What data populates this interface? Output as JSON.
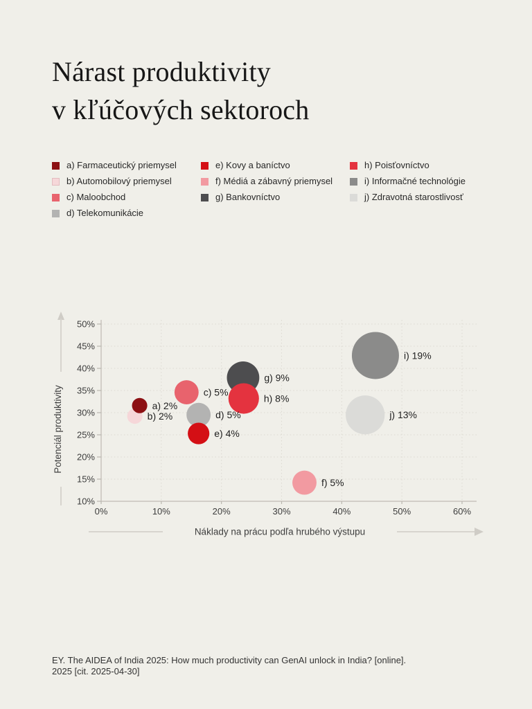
{
  "page": {
    "background": "#f0efe9"
  },
  "title": {
    "line1": "Nárast produktivity",
    "line2": "v kľúčových sektoroch"
  },
  "legend": {
    "columns": [
      [
        {
          "id": "a",
          "label": "a) Farmaceutický priemysel",
          "color": "#8c1013"
        },
        {
          "id": "b",
          "label": "b) Automobilový priemysel",
          "color": "#f6d7d9",
          "border": "#e3bcbf"
        },
        {
          "id": "c",
          "label": "c) Maloobchod",
          "color": "#e8636d"
        },
        {
          "id": "d",
          "label": "d) Telekomunikácie",
          "color": "#b3b3b2"
        }
      ],
      [
        {
          "id": "e",
          "label": "e) Kovy a baníctvo",
          "color": "#d40f15"
        },
        {
          "id": "f",
          "label": "f) Médiá a zábavný priemysel",
          "color": "#f29aa1"
        },
        {
          "id": "g",
          "label": "g) Bankovníctvo",
          "color": "#4d4d4f"
        }
      ],
      [
        {
          "id": "h",
          "label": "h) Poisťovníctvo",
          "color": "#e4333f"
        },
        {
          "id": "i",
          "label": "i) Informačné technológie",
          "color": "#8b8b8a"
        },
        {
          "id": "j",
          "label": "j) Zdravotná starostlivosť",
          "color": "#dbdbd8"
        }
      ]
    ]
  },
  "chart_data": {
    "type": "scatter",
    "subtype": "bubble",
    "title": "",
    "xlabel": "Náklady na prácu podľa hrubého výstupu",
    "ylabel": "Potenciál produktivity",
    "xlim": [
      0,
      60
    ],
    "ylim": [
      10,
      50
    ],
    "x_ticks": [
      0,
      10,
      20,
      30,
      40,
      50,
      60
    ],
    "y_ticks": [
      10,
      15,
      20,
      25,
      30,
      35,
      40,
      45,
      50
    ],
    "tick_format": "percent",
    "grid": "dotted",
    "legend_position": "top",
    "bubble_scale": 7.8,
    "bubbles": [
      {
        "id": "b",
        "sector": "Automobilový priemysel",
        "label": "b) 2%",
        "x": 5.6,
        "y": 29.2,
        "value": 2,
        "color": "#f6d7d9"
      },
      {
        "id": "a",
        "sector": "Farmaceutický priemysel",
        "label": "a) 2%",
        "x": 6.4,
        "y": 31.6,
        "value": 2,
        "color": "#8c1013"
      },
      {
        "id": "c",
        "sector": "Maloobchod",
        "label": "c) 5%",
        "x": 14.2,
        "y": 34.6,
        "value": 5,
        "color": "#e8636d"
      },
      {
        "id": "d",
        "sector": "Telekomunikácie",
        "label": "d) 5%",
        "x": 16.2,
        "y": 29.5,
        "value": 5,
        "color": "#b3b3b2"
      },
      {
        "id": "e",
        "sector": "Kovy a baníctvo",
        "label": "e) 4%",
        "x": 16.2,
        "y": 25.3,
        "value": 4,
        "color": "#d40f15"
      },
      {
        "id": "f",
        "sector": "Médiá a zábavný priemysel",
        "label": "f) 5%",
        "x": 33.8,
        "y": 14.2,
        "value": 5,
        "color": "#f29aa1"
      },
      {
        "id": "g",
        "sector": "Bankovníctvo",
        "label": "g) 9%",
        "x": 23.6,
        "y": 37.9,
        "value": 9,
        "color": "#4d4d4f"
      },
      {
        "id": "h",
        "sector": "Poisťovníctvo",
        "label": "h) 8%",
        "x": 23.7,
        "y": 33.2,
        "value": 8,
        "color": "#e4333f"
      },
      {
        "id": "i",
        "sector": "Informačné technológie",
        "label": "i) 19%",
        "x": 45.6,
        "y": 42.9,
        "value": 19,
        "color": "#8b8b8a"
      },
      {
        "id": "j",
        "sector": "Zdravotná starostlivosť",
        "label": "j) 13%",
        "x": 43.9,
        "y": 29.5,
        "value": 13,
        "color": "#dbdbd8"
      }
    ]
  },
  "source": {
    "line1": "EY. The AIDEA of India 2025: How much productivity can GenAI unlock in India? [online].",
    "line2": "2025 [cit. 2025-04-30]"
  }
}
